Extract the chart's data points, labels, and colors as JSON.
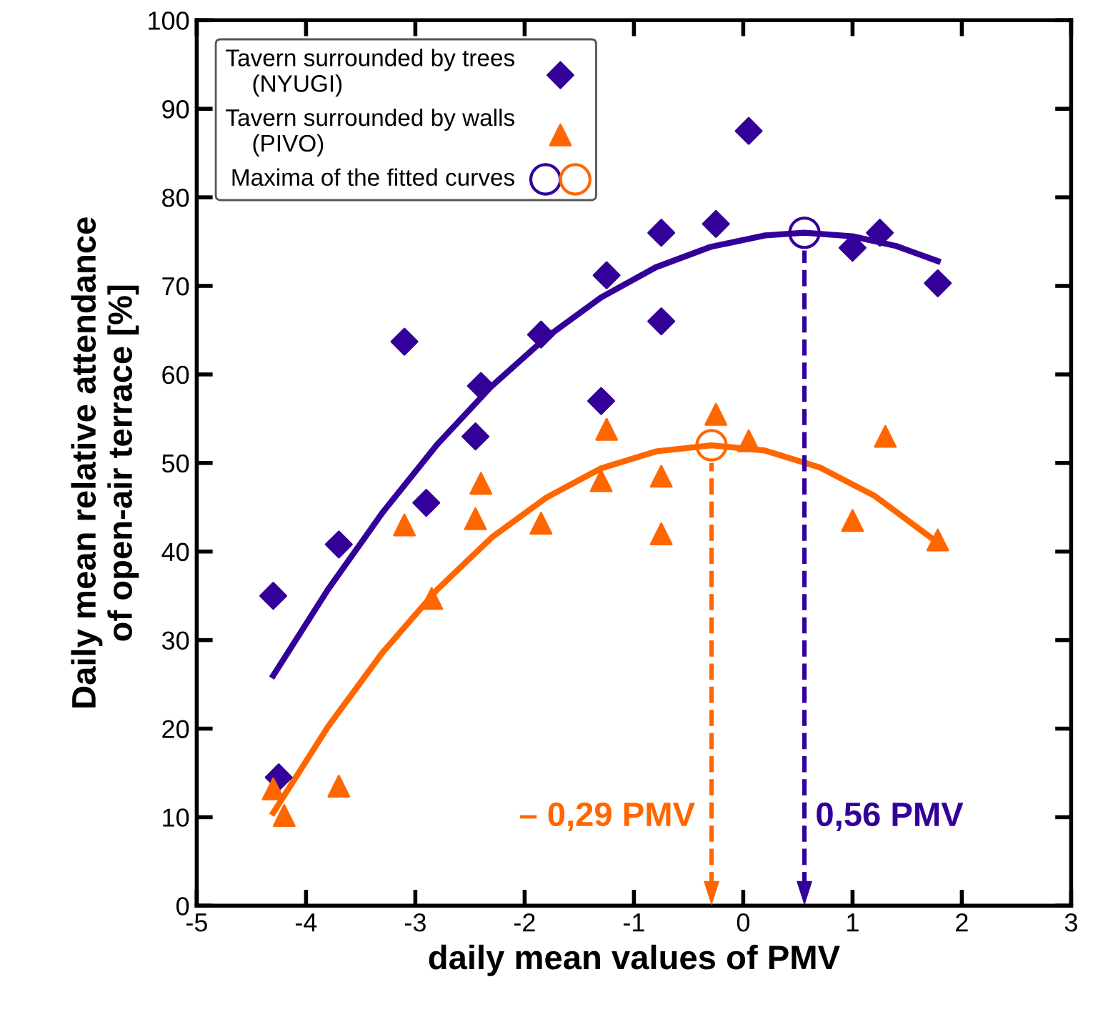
{
  "chart_data": {
    "type": "scatter",
    "xlabel": "daily mean values of PMV",
    "ylabel": "Daily mean relative attendance\nof open-air terrace [%]",
    "xlim": [
      -5,
      3
    ],
    "xticks": [
      -5,
      -4,
      -3,
      -2,
      -1,
      0,
      1,
      2,
      3
    ],
    "ylim": [
      0,
      100
    ],
    "yticks": [
      0,
      10,
      20,
      30,
      40,
      50,
      60,
      70,
      80,
      90,
      100
    ],
    "grid": false,
    "legend": "top left",
    "series": [
      {
        "name": "Tavern surrounded by trees\n    (NYUGI)",
        "marker": "diamond",
        "color": "#330099",
        "x": [
          -4.3,
          -4.25,
          -3.7,
          -3.1,
          -2.9,
          -2.45,
          -2.4,
          -1.85,
          -1.3,
          -1.25,
          -0.75,
          -0.75,
          -0.25,
          0.05,
          1.0,
          1.25,
          1.78
        ],
        "values": [
          35,
          14.5,
          40.8,
          63.7,
          45.5,
          53,
          58.7,
          64.5,
          57,
          71.2,
          66,
          76,
          77,
          87.5,
          74.3,
          76,
          70.3
        ]
      },
      {
        "name": "Tavern surrounded by walls\n    (PIVO)",
        "marker": "triangle",
        "color": "#ff6600",
        "x": [
          -4.3,
          -4.2,
          -3.7,
          -3.1,
          -2.85,
          -2.45,
          -2.4,
          -1.85,
          -1.3,
          -1.25,
          -0.75,
          -0.75,
          -0.25,
          0.05,
          1.0,
          1.3,
          1.78
        ],
        "values": [
          13.2,
          10.2,
          13.5,
          43,
          34.7,
          43.7,
          47.7,
          43.2,
          48,
          53.8,
          48.5,
          42,
          55.5,
          52.5,
          43.5,
          53,
          41.3
        ]
      },
      {
        "type": "line",
        "marker": "none",
        "line_style": "solid",
        "color": "#330099",
        "x": [
          -4.3,
          -3.8,
          -3.3,
          -2.8,
          -2.3,
          -1.8,
          -1.3,
          -0.8,
          -0.3,
          0.2,
          0.56,
          1.0,
          1.4,
          1.78
        ],
        "values": [
          26.0,
          35.7,
          44.4,
          52.1,
          58.7,
          64.2,
          68.7,
          72.1,
          74.4,
          75.7,
          76,
          75.6,
          74.5,
          72.8
        ]
      },
      {
        "type": "line",
        "marker": "none",
        "line_style": "solid",
        "color": "#ff6600",
        "x": [
          -4.3,
          -3.8,
          -3.3,
          -2.8,
          -2.3,
          -1.8,
          -1.3,
          -0.8,
          -0.29,
          0.2,
          0.7,
          1.2,
          1.78
        ],
        "values": [
          10.5,
          20.2,
          28.6,
          35.7,
          41.6,
          46.1,
          49.4,
          51.3,
          52,
          51.4,
          49.5,
          46.3,
          41.0
        ]
      },
      {
        "name": "Maxima of the fitted curves",
        "marker": "circle",
        "color": "#330099",
        "x": [
          0.56
        ],
        "values": [
          76
        ]
      },
      {
        "marker": "circle",
        "color": "#ff6600",
        "x": [
          -0.29
        ],
        "values": [
          52
        ]
      }
    ],
    "ref_lines": [
      {
        "axis": "x",
        "value": -0.29,
        "label": "– 0,29 PMV",
        "color": "#ff6600",
        "line_style": "dashed"
      },
      {
        "axis": "x",
        "value": 0.56,
        "label": "0,56 PMV",
        "color": "#330099",
        "line_style": "dashed"
      }
    ]
  }
}
